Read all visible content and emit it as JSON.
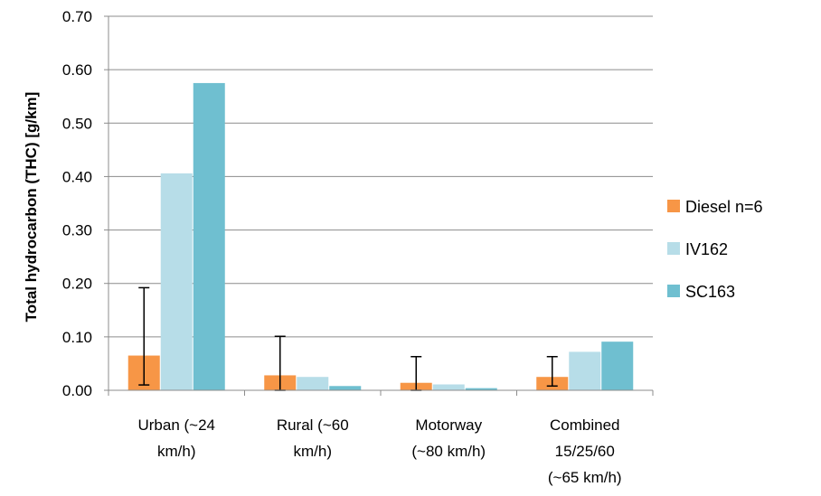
{
  "chart_data": {
    "type": "bar",
    "title": "",
    "xlabel": "",
    "ylabel": "Total hydrocarbon (THC) [g/km]",
    "ylim": [
      0,
      0.7
    ],
    "yticks": [
      "0.00",
      "0.10",
      "0.20",
      "0.30",
      "0.40",
      "0.50",
      "0.60",
      "0.70"
    ],
    "categories": [
      [
        "Urban (~24",
        "km/h)"
      ],
      [
        "Rural (~60",
        "km/h)"
      ],
      [
        "Motorway",
        "(~80 km/h)"
      ],
      [
        "Combined",
        "15/25/60",
        "(~65 km/h)"
      ]
    ],
    "series": [
      {
        "name": "Diesel n=6",
        "color": "#f79646",
        "values": [
          0.065,
          0.028,
          0.014,
          0.025
        ],
        "error_low": [
          0.01,
          0.0,
          0.0,
          0.008
        ],
        "error_high": [
          0.192,
          0.101,
          0.063,
          0.063
        ]
      },
      {
        "name": "IV162",
        "color": "#b7dde8",
        "values": [
          0.406,
          0.025,
          0.011,
          0.072
        ]
      },
      {
        "name": "SC163",
        "color": "#6fbfd0",
        "values": [
          0.575,
          0.008,
          0.004,
          0.091
        ]
      }
    ],
    "grid": true,
    "legend_position": "right"
  }
}
